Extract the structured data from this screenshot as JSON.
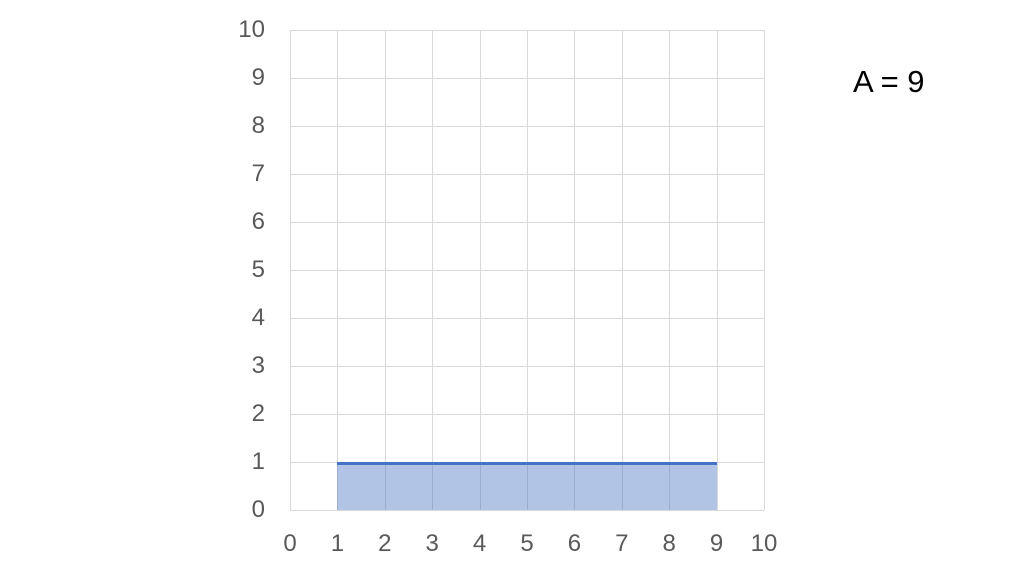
{
  "chart_data": {
    "type": "bar",
    "title": "",
    "xlabel": "",
    "ylabel": "",
    "xlim": [
      0,
      10
    ],
    "ylim": [
      0,
      10
    ],
    "x_ticks": [
      "0",
      "1",
      "2",
      "3",
      "4",
      "5",
      "6",
      "7",
      "8",
      "9",
      "10"
    ],
    "y_ticks": [
      "0",
      "1",
      "2",
      "3",
      "4",
      "5",
      "6",
      "7",
      "8",
      "9",
      "10"
    ],
    "grid": true,
    "legend": "none",
    "series": [
      {
        "name": "A",
        "shape": "rectangle",
        "x0": 1,
        "x1": 9,
        "y0": 0,
        "y1": 1
      }
    ],
    "annotation": "A = 9",
    "colors": {
      "rect_fill": "#4472c4",
      "rect_fill_opacity": 0.42,
      "rect_top_border": "#4472c4",
      "gridline": "#d9d9d9",
      "tick_label": "#595959",
      "annotation_text": "#000000",
      "background": "#ffffff"
    }
  }
}
